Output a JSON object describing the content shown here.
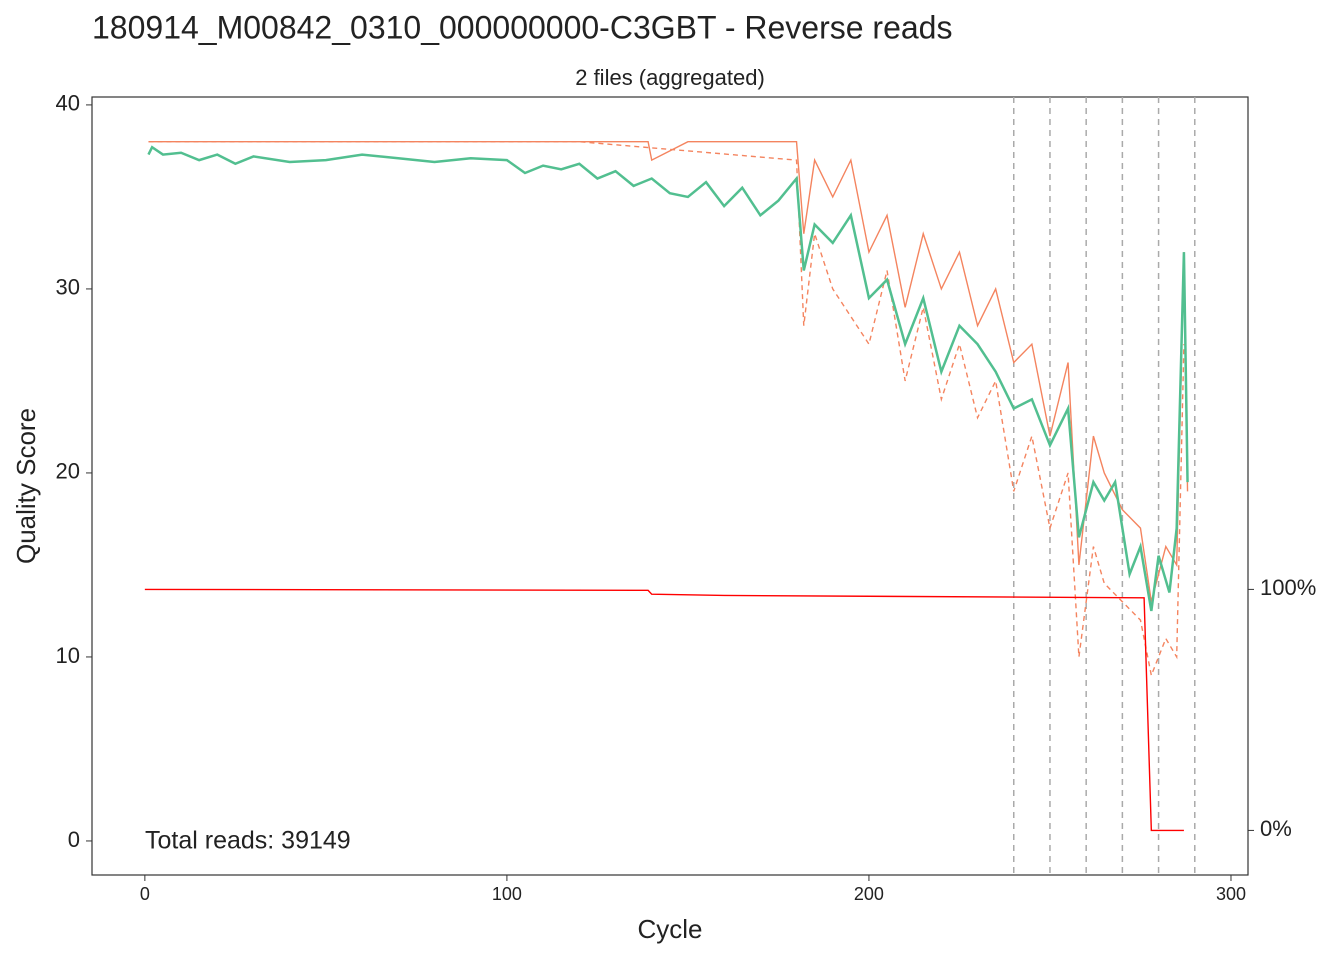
{
  "chart_data": {
    "type": "line",
    "title": "180914_M00842_0310_000000000-C3GBT - Reverse reads",
    "subtitle": "2 files (aggregated)",
    "x_label": "Cycle",
    "y_label": "Quality Score",
    "annotation": "Total reads: 39149",
    "xlim": [
      -14.6,
      304.7
    ],
    "xticks": [
      0,
      100,
      200,
      300
    ],
    "ylim": [
      -1.85,
      40.43
    ],
    "yticks": [
      0,
      10,
      20,
      30,
      40
    ],
    "y2lim": [
      -18.5,
      304.3
    ],
    "y2ticks": [
      {
        "value": 0,
        "label": "0%"
      },
      {
        "value": 100,
        "label": "100%"
      }
    ],
    "vlines": [
      240,
      250,
      260,
      270,
      280,
      290
    ],
    "series": [
      {
        "color": "#f4845f",
        "dash": false,
        "x": [
          1,
          20,
          40,
          60,
          80,
          100,
          120,
          139,
          140,
          150,
          160,
          175,
          180,
          182,
          185,
          190,
          195,
          200,
          205,
          210,
          215,
          220,
          225,
          230,
          235,
          240,
          245,
          250,
          255,
          258,
          262,
          265,
          270,
          275,
          278,
          282,
          285,
          287,
          288
        ],
        "values": [
          38,
          38,
          38,
          38,
          38,
          38,
          38,
          38,
          37,
          38,
          38,
          38,
          38,
          33,
          37,
          35,
          37,
          32,
          34,
          29,
          33,
          30,
          32,
          28,
          30,
          26,
          27,
          22,
          26,
          15,
          22,
          20,
          18,
          17,
          13,
          16,
          15,
          32,
          19
        ]
      },
      {
        "color": "#f4845f",
        "dash": true,
        "x": [
          1,
          60,
          120,
          180,
          182,
          185,
          190,
          200,
          205,
          210,
          215,
          220,
          225,
          230,
          235,
          240,
          245,
          250,
          255,
          258,
          262,
          265,
          270,
          275,
          278,
          282,
          285,
          287
        ],
        "values": [
          38,
          38,
          38,
          37,
          28,
          33,
          30,
          27,
          31,
          25,
          29,
          24,
          27,
          23,
          25,
          19,
          22,
          17,
          20,
          10,
          16,
          14,
          13,
          12,
          9,
          11,
          10,
          27
        ]
      },
      {
        "color": "#52bf90",
        "dash": false,
        "x": [
          1,
          2,
          5,
          10,
          15,
          20,
          25,
          30,
          40,
          50,
          60,
          70,
          80,
          90,
          100,
          105,
          110,
          115,
          120,
          125,
          130,
          135,
          140,
          145,
          150,
          155,
          160,
          165,
          170,
          175,
          180,
          182,
          185,
          190,
          195,
          200,
          205,
          210,
          215,
          220,
          225,
          230,
          235,
          240,
          245,
          250,
          255,
          258,
          262,
          265,
          268,
          270,
          272,
          275,
          278,
          280,
          283,
          285,
          287,
          288
        ],
        "values": [
          37.3,
          37.7,
          37.3,
          37.4,
          37.0,
          37.3,
          36.8,
          37.2,
          36.9,
          37.0,
          37.3,
          37.1,
          36.9,
          37.1,
          37.0,
          36.3,
          36.7,
          36.5,
          36.8,
          36.0,
          36.4,
          35.6,
          36.0,
          35.2,
          35.0,
          35.8,
          34.5,
          35.5,
          34.0,
          34.8,
          36.0,
          31.0,
          33.5,
          32.5,
          34.0,
          29.5,
          30.5,
          27.0,
          29.5,
          25.5,
          28.0,
          27.0,
          25.5,
          23.5,
          24.0,
          21.5,
          23.5,
          16.5,
          19.5,
          18.5,
          19.5,
          17.0,
          14.5,
          16.0,
          12.5,
          15.5,
          13.5,
          17.0,
          32.0,
          19.5
        ]
      },
      {
        "color": "#ff0000",
        "dash": false,
        "axis": "y2",
        "x": [
          0,
          139,
          140,
          160,
          276,
          278,
          287
        ],
        "values": [
          100,
          99.6,
          98,
          97.5,
          96.5,
          0,
          0
        ]
      }
    ]
  }
}
